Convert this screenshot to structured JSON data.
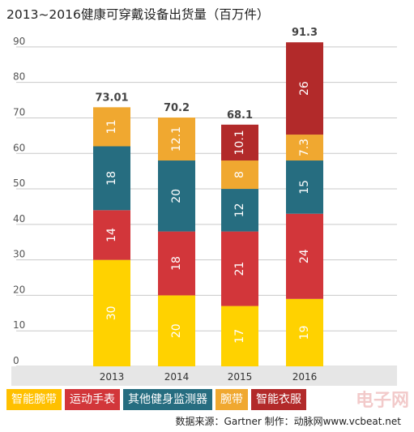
{
  "title": "2013~2016健康可穿戴设备出货量（百万件）",
  "chart_data": {
    "type": "bar",
    "stacked": true,
    "categories": [
      "2013",
      "2014",
      "2015",
      "2016"
    ],
    "ylim": [
      0,
      95
    ],
    "yticks": [
      0,
      10,
      20,
      30,
      40,
      50,
      60,
      70,
      80,
      90
    ],
    "grid": true,
    "totals": [
      "73.01",
      "70.2",
      "68.1",
      "91.3"
    ],
    "series": [
      {
        "name": "智能腕带",
        "color": "#ffd200",
        "values": [
          30,
          20,
          17,
          19
        ],
        "labels": [
          "30",
          "20",
          "17",
          "19"
        ]
      },
      {
        "name": "运动手表",
        "color": "#d2363a",
        "values": [
          14,
          18,
          21,
          24
        ],
        "labels": [
          "14",
          "18",
          "21",
          "24"
        ]
      },
      {
        "name": "其他健身监测器",
        "color": "#266d80",
        "values": [
          18,
          20,
          12,
          15
        ],
        "labels": [
          "18",
          "20",
          "12",
          "15"
        ]
      },
      {
        "name": "腕带",
        "color": "#f0a830",
        "values": [
          11,
          12.1,
          8,
          7.3
        ],
        "labels": [
          "11",
          "12.1",
          "8",
          "7.3"
        ]
      },
      {
        "name": "智能衣服",
        "color": "#b22a2a",
        "values": [
          0,
          0,
          10.1,
          26
        ],
        "labels": [
          "",
          "",
          "10.1",
          "26"
        ]
      }
    ]
  },
  "legend": [
    {
      "label": "智能腕带",
      "color": "#ffc000"
    },
    {
      "label": "运动手表",
      "color": "#d2363a"
    },
    {
      "label": "其他健身监测器",
      "color": "#266d80"
    },
    {
      "label": "腕带",
      "color": "#f0a830"
    },
    {
      "label": "智能衣服",
      "color": "#b22a2a"
    }
  ],
  "source": "数据来源：Gartner   制作：动脉网www.vcbeat.net",
  "watermark": "电子网"
}
